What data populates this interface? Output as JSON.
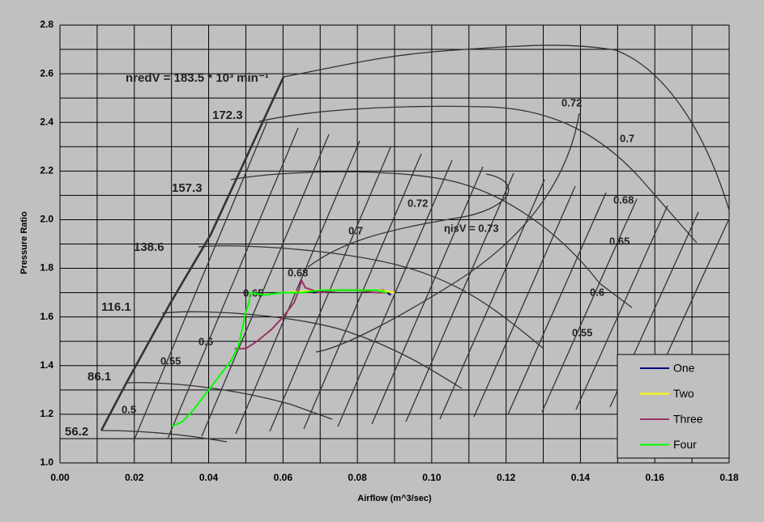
{
  "chart_data": {
    "type": "line",
    "x_label": "Airflow (m^3/sec)",
    "y_label": "Pressure Ratio",
    "xlim": [
      0,
      0.18
    ],
    "xticks": [
      {
        "value": 0,
        "label": "0.00"
      },
      0.02,
      0.04,
      0.06,
      0.08,
      {
        "value": 0.1,
        "label": "0.10"
      },
      0.12,
      0.14,
      0.16,
      0.18
    ],
    "ylim": [
      1,
      2.8
    ],
    "yticks": [
      {
        "value": 1,
        "label": "1.0"
      },
      1.2,
      1.4,
      1.6,
      1.8,
      {
        "value": 2,
        "label": "2.0"
      },
      2.2,
      2.4,
      2.6,
      2.8
    ],
    "grid": true,
    "legend": "lower right",
    "annotations": [
      "nredV = 183.5 * 10³ min⁻¹",
      "172.3",
      "157.3",
      "138.6",
      "116.1",
      "86.1",
      "56.2",
      "0.5",
      "0.55",
      "0.6",
      "0.65",
      "0.68",
      "0.7",
      "0.72",
      "ηisV = 0.73",
      "0.72",
      "0.7",
      "0.68",
      "0.65",
      "0.6",
      "0.55"
    ],
    "series": [
      {
        "name": "One",
        "color": "#000080",
        "x": [
          0.068,
          0.075,
          0.082,
          0.087,
          0.089
        ],
        "values": [
          1.7,
          1.71,
          1.71,
          1.71,
          1.69
        ]
      },
      {
        "name": "Two",
        "color": "#ffff00",
        "x": [
          0.06,
          0.07,
          0.08,
          0.086,
          0.09
        ],
        "values": [
          1.7,
          1.71,
          1.71,
          1.71,
          1.7
        ]
      },
      {
        "name": "Three",
        "color": "#993366",
        "x": [
          0.047,
          0.05,
          0.053,
          0.057,
          0.06,
          0.063,
          0.064,
          0.065,
          0.066,
          0.07,
          0.075,
          0.08,
          0.085,
          0.088
        ],
        "values": [
          1.47,
          1.47,
          1.5,
          1.55,
          1.6,
          1.66,
          1.7,
          1.75,
          1.72,
          1.7,
          1.71,
          1.71,
          1.7,
          1.7
        ]
      },
      {
        "name": "Four",
        "color": "#00ff00",
        "x": [
          0.03,
          0.033,
          0.036,
          0.04,
          0.043,
          0.046,
          0.048,
          0.049,
          0.05,
          0.051,
          0.051,
          0.055,
          0.06,
          0.065,
          0.07,
          0.075,
          0.08,
          0.085,
          0.088
        ],
        "values": [
          1.15,
          1.17,
          1.22,
          1.3,
          1.36,
          1.42,
          1.48,
          1.55,
          1.62,
          1.67,
          1.7,
          1.69,
          1.7,
          1.7,
          1.71,
          1.71,
          1.71,
          1.71,
          1.7
        ]
      }
    ]
  }
}
